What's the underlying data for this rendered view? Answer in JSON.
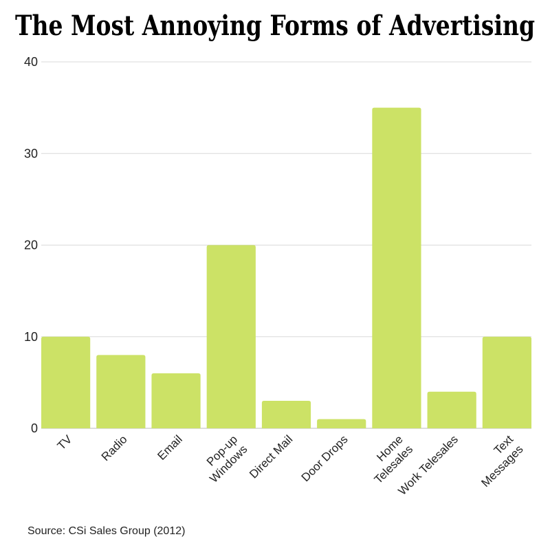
{
  "chart_data": {
    "type": "bar",
    "title": "The Most Annoying Forms of Advertising",
    "categories": [
      "TV",
      "Radio",
      "Email",
      "Pop-up Windows",
      "Direct Mail",
      "Door Drops",
      "Home Telesales",
      "Work Telesales",
      "Text Messages"
    ],
    "category_lines": [
      [
        "TV"
      ],
      [
        "Radio"
      ],
      [
        "Email"
      ],
      [
        "Pop-up",
        "Windows"
      ],
      [
        "Direct Mail"
      ],
      [
        "Door Drops"
      ],
      [
        "Home",
        "Telesales"
      ],
      [
        "Work Telesales"
      ],
      [
        "Text",
        "Messages"
      ]
    ],
    "values": [
      10,
      8,
      6,
      20,
      3,
      1,
      35,
      4,
      10
    ],
    "ylim": [
      0,
      40
    ],
    "yticks": [
      0,
      10,
      20,
      30,
      40
    ],
    "xlabel": "",
    "ylabel": "",
    "grid": true,
    "bar_color": "#cce266",
    "grid_color": "#d9d9d9",
    "source": "Source: CSi Sales Group (2012)"
  }
}
